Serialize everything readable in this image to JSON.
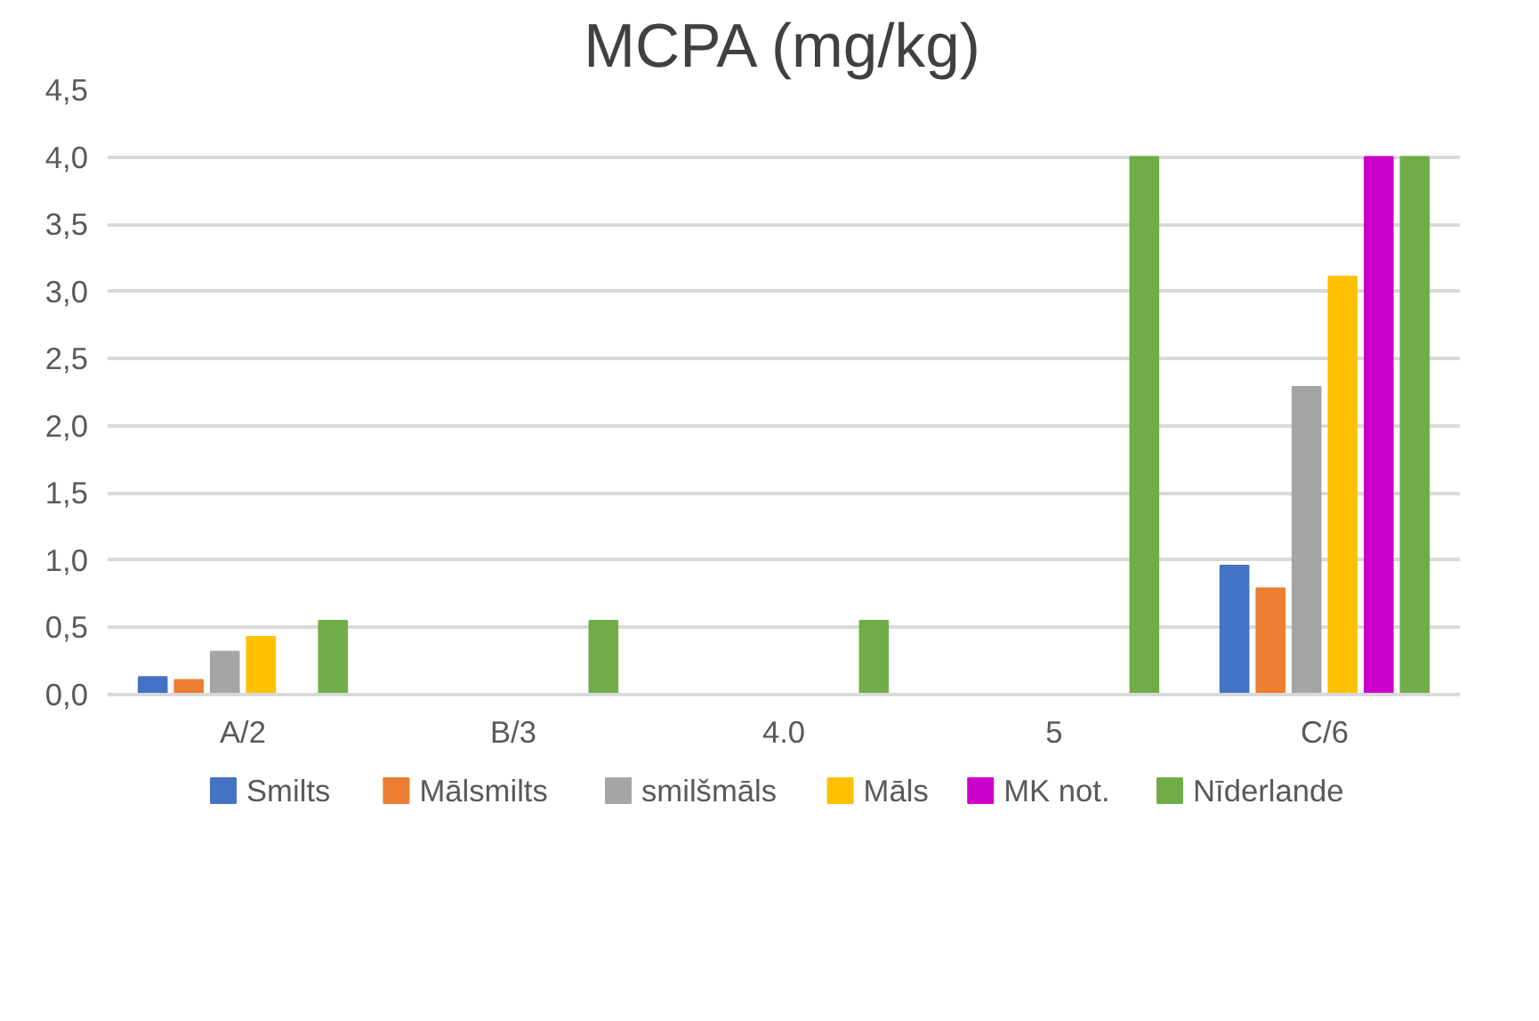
{
  "chart_data": {
    "type": "bar",
    "title": "MCPA (mg/kg)",
    "categories": [
      "A/2",
      "B/3",
      "4.0",
      "5",
      "C/6"
    ],
    "series": [
      {
        "name": "Smilts",
        "color": "#4472c4",
        "values": [
          0.13,
          null,
          null,
          null,
          0.96
        ]
      },
      {
        "name": "Mālsmilts",
        "color": "#ed7d31",
        "values": [
          0.11,
          null,
          null,
          null,
          0.79
        ]
      },
      {
        "name": "smilšmāls",
        "color": "#a5a5a5",
        "values": [
          0.32,
          null,
          null,
          null,
          2.29
        ]
      },
      {
        "name": "Māls",
        "color": "#ffc000",
        "values": [
          0.43,
          null,
          null,
          null,
          3.11
        ]
      },
      {
        "name": "MK not.",
        "color": "#cc00cc",
        "values": [
          null,
          null,
          null,
          null,
          4.0
        ]
      },
      {
        "name": "Nīderlande",
        "color": "#70ad47",
        "values": [
          0.55,
          0.55,
          0.55,
          4.0,
          4.0
        ]
      }
    ],
    "ylim": [
      0,
      4.5
    ],
    "yticks": [
      {
        "value": 0,
        "label": "0,0"
      },
      {
        "value": 0.5,
        "label": "0,5"
      },
      {
        "value": 1,
        "label": "1,0"
      },
      {
        "value": 1.5,
        "label": "1,5"
      },
      {
        "value": 2,
        "label": "2,0"
      },
      {
        "value": 2.5,
        "label": "2,5"
      },
      {
        "value": 3,
        "label": "3,0"
      },
      {
        "value": 3.5,
        "label": "3,5"
      },
      {
        "value": 4,
        "label": "4,0"
      },
      {
        "value": 4.5,
        "label": "4,5"
      }
    ],
    "grid": "y",
    "legend": "bottom"
  }
}
